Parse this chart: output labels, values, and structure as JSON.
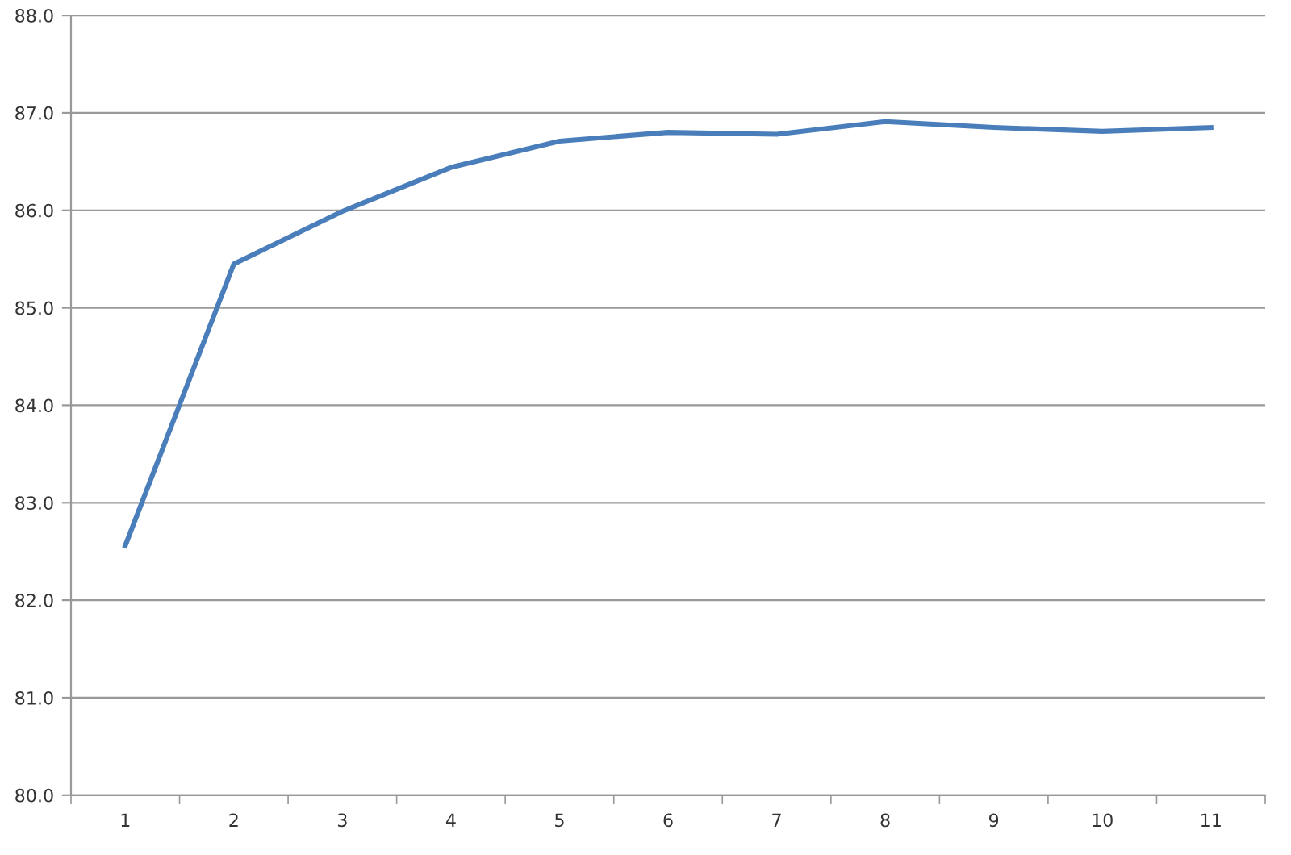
{
  "chart_data": {
    "type": "line",
    "categories": [
      "1",
      "2",
      "3",
      "4",
      "5",
      "6",
      "7",
      "8",
      "9",
      "10",
      "11"
    ],
    "series": [
      {
        "color": "#4a7ebb",
        "values": [
          82.56,
          85.45,
          85.99,
          86.44,
          86.71,
          86.8,
          86.78,
          86.91,
          86.85,
          86.81,
          86.85
        ]
      }
    ],
    "ylim": [
      80,
      88
    ],
    "yticks": [
      {
        "value": 80,
        "label": "80.0"
      },
      {
        "value": 81,
        "label": "81.0"
      },
      {
        "value": 82,
        "label": "82.0"
      },
      {
        "value": 83,
        "label": "83.0"
      },
      {
        "value": 84,
        "label": "84.0"
      },
      {
        "value": 85,
        "label": "85.0"
      },
      {
        "value": 86,
        "label": "86.0"
      },
      {
        "value": 87,
        "label": "87.0"
      },
      {
        "value": 88,
        "label": "88.0"
      }
    ],
    "grid": "y",
    "marker": "none",
    "line_style": "solid"
  }
}
